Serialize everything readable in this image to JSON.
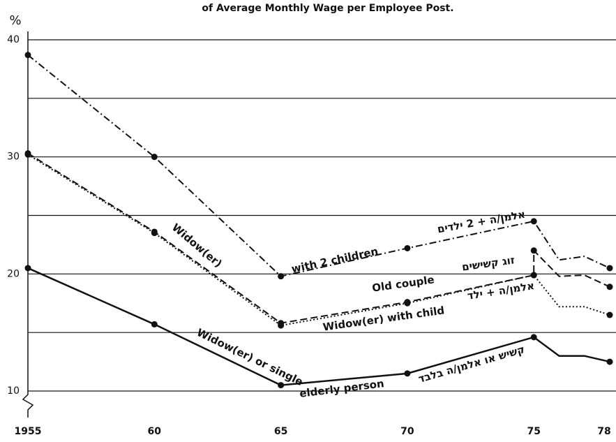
{
  "chart_data": {
    "type": "line",
    "title": "of Average Monthly Wage per Employee Post.",
    "y_label": "%",
    "xlim": [
      1955,
      1978
    ],
    "xticks": [
      1955,
      {
        "value": 1960,
        "label": "60"
      },
      {
        "value": 1965,
        "label": "65"
      },
      {
        "value": 1970,
        "label": "70"
      },
      {
        "value": 1975,
        "label": "75"
      },
      {
        "value": 1978,
        "label": "78"
      }
    ],
    "ylim": [
      10,
      40
    ],
    "yticks": [
      10,
      {
        "value": 15,
        "label": ""
      },
      20,
      {
        "value": 25,
        "label": ""
      },
      30,
      {
        "value": 35,
        "label": ""
      },
      40
    ],
    "grid": true,
    "series": [
      {
        "name": "Widow(er) with 2 children",
        "color": "#111111",
        "style": "dashdot",
        "x": [
          1955,
          1960,
          1965,
          1970,
          1975,
          1976,
          1977,
          1978
        ],
        "values": [
          38.7,
          30,
          19.8,
          22.2,
          24.5,
          21.2,
          21.5,
          20.5
        ]
      },
      {
        "name": "Old couple",
        "color": "#111111",
        "style": "dashed",
        "x": [
          1955,
          1960,
          1965,
          1970,
          1975,
          1975,
          1976,
          1977,
          1978
        ],
        "values": [
          30.3,
          23.6,
          15.8,
          17.6,
          19.9,
          22,
          19.8,
          19.9,
          18.9
        ]
      },
      {
        "name": "Widow(er) with child",
        "color": "#111111",
        "style": "dotted",
        "x": [
          1955,
          1960,
          1965,
          1970,
          1975,
          1976,
          1977,
          1978
        ],
        "values": [
          30.2,
          23.5,
          15.6,
          17.5,
          19.9,
          17.2,
          17.2,
          16.5
        ]
      },
      {
        "name": "Widow(er) or single elderly person",
        "color": "#111111",
        "style": "solid",
        "x": [
          1955,
          1960,
          1965,
          1970,
          1975,
          1976,
          1977,
          1978
        ],
        "values": [
          20.5,
          15.7,
          10.5,
          11.5,
          14.6,
          13,
          13,
          12.5
        ]
      }
    ],
    "annotations": [
      "Widow(er)",
      "with 2 children",
      "אלמן/ה + 2 ילדים",
      "Old couple",
      "זוג קשישים",
      "Widow(er) with child",
      "אלמן/ה + ילד",
      "Widow(er) or single",
      "elderly person",
      "קשיש או אלמן/ה בלבד"
    ]
  }
}
